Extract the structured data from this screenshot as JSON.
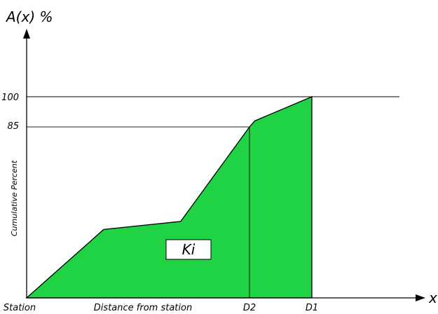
{
  "chart_data": {
    "type": "area",
    "ylabel_top": "A(x) %",
    "ylabel_side": "Cumulative Percent",
    "xlabel_end": "x",
    "xlabel_mid": "Distance from station",
    "x_tick_labels": {
      "station": "Station",
      "d2": "D2",
      "d1": "D1"
    },
    "y_tick_labels": {
      "p85": "85",
      "p100": "100"
    },
    "region_label": "Ki",
    "ylim": [
      0,
      100
    ],
    "colors": {
      "fill": "#1fd344",
      "line": "#000000"
    },
    "grid": false,
    "series": [
      {
        "points": [
          {
            "x": "Station",
            "y": 0
          },
          {
            "x": 0.27,
            "y": 34
          },
          {
            "x": 0.54,
            "y": 38
          },
          {
            "x": "D2",
            "y": 85
          },
          {
            "x": 0.8,
            "y": 88
          },
          {
            "x": "D1",
            "y": 100
          }
        ]
      }
    ]
  }
}
